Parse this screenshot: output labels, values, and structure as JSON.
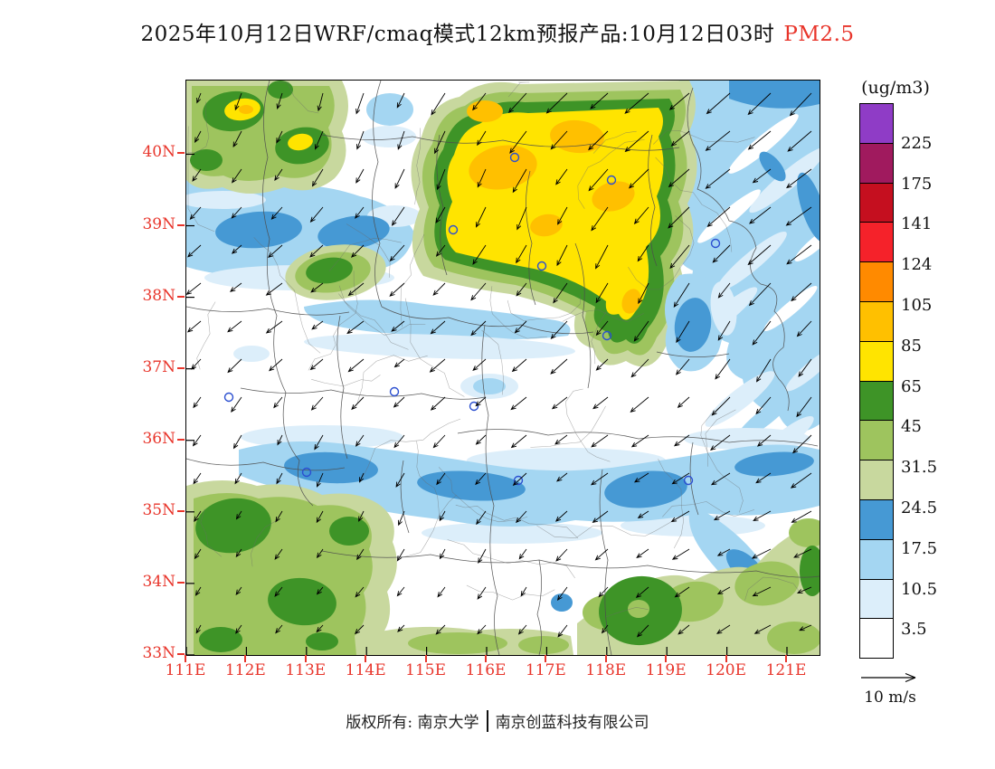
{
  "title": {
    "text": "2025年10月12日WRF/cmaq模式12km预报产品:10月12日03时",
    "highlight": "PM2.5"
  },
  "axes": {
    "x_ticks": [
      {
        "label": "111E",
        "lon": 111
      },
      {
        "label": "112E",
        "lon": 112
      },
      {
        "label": "113E",
        "lon": 113
      },
      {
        "label": "114E",
        "lon": 114
      },
      {
        "label": "115E",
        "lon": 115
      },
      {
        "label": "116E",
        "lon": 116
      },
      {
        "label": "117E",
        "lon": 117
      },
      {
        "label": "118E",
        "lon": 118
      },
      {
        "label": "119E",
        "lon": 119
      },
      {
        "label": "120E",
        "lon": 120
      },
      {
        "label": "121E",
        "lon": 121
      }
    ],
    "y_ticks": [
      {
        "label": "40N",
        "lat": 40
      },
      {
        "label": "39N",
        "lat": 39
      },
      {
        "label": "38N",
        "lat": 38
      },
      {
        "label": "37N",
        "lat": 37
      },
      {
        "label": "36N",
        "lat": 36
      },
      {
        "label": "35N",
        "lat": 35
      },
      {
        "label": "34N",
        "lat": 34
      },
      {
        "label": "33N",
        "lat": 33
      }
    ]
  },
  "colorbar": {
    "unit": "(ug/m3)",
    "labels_top_to_bottom": [
      "225",
      "175",
      "141",
      "124",
      "105",
      "85",
      "65",
      "45",
      "31.5",
      "24.5",
      "17.5",
      "10.5",
      "3.5"
    ],
    "colors_top_to_bottom": [
      "#8F3CC6",
      "#A01A5E",
      "#C50F1F",
      "#F5222A",
      "#FF8A00",
      "#FFC000",
      "#FFE400",
      "#3E9427",
      "#9EC45E",
      "#C8D89E",
      "#4699D4",
      "#A4D6F2",
      "#DCEEFA",
      "#FFFFFF"
    ]
  },
  "wind_reference": {
    "label": "10 m/s"
  },
  "footer": {
    "owner": "版权所有: 南京大学",
    "company": "南京创蓝科技有限公司"
  },
  "colors": {
    "axis_label": "#e8352b",
    "title_highlight": "#e8352b",
    "map_border": "#000000",
    "city_marker": "#2b4fd0"
  },
  "chart_data": {
    "type": "heatmap",
    "subtype": "filled-contour-forecast-map-with-wind-vectors",
    "variable": "PM2.5",
    "unit": "ug/m3",
    "model": "WRF/cmaq 12km",
    "valid_time": "2025-10-12 03时",
    "lon_range": [
      111,
      121.5
    ],
    "lat_range": [
      33,
      41
    ],
    "levels": [
      3.5,
      10.5,
      17.5,
      24.5,
      31.5,
      45,
      65,
      85,
      105,
      124,
      141,
      175,
      225
    ],
    "wind_reference_speed": "10 m/s",
    "wind_summary": "Arrows generally point south to southwest; strongest (long) vectors in the northeast corner, westward-pointing vectors along the west-central edge, southward vectors across the south.",
    "field_summary": [
      {
        "area": "north-central 114.5-119E / 38-41N",
        "value_range": "65-105 (yellow core with gold patches, green rim)"
      },
      {
        "area": "northwest corner 111-113.5E / 39.8-41N",
        "value_range": "24.5-105 (green with small yellow/gold spots)"
      },
      {
        "area": "northeast corner 118-121.5E / 37.5-41N",
        "value_range": "3.5-24.5 (streaky pale/light blue, Bohai area)"
      },
      {
        "area": "west band near 39N 111-114.5E",
        "value_range": "10.5-24.5 (blue band)"
      },
      {
        "area": "central 111-121E / 34.5-37.5N",
        "value_range": "<3.5 (white, clean)"
      },
      {
        "area": "southern band 33.8-35.3N across map",
        "value_range": "3.5-24.5 (blue band with medium-blue patches)"
      },
      {
        "area": "southwest 111-114E / 33-35.3N",
        "value_range": "24.5-65 (greens)"
      },
      {
        "area": "south-bottom 116-121.5E / 33-34.5N",
        "value_range": "24.5-65 (sage/green patches, dark green blob near 118E)"
      }
    ]
  }
}
